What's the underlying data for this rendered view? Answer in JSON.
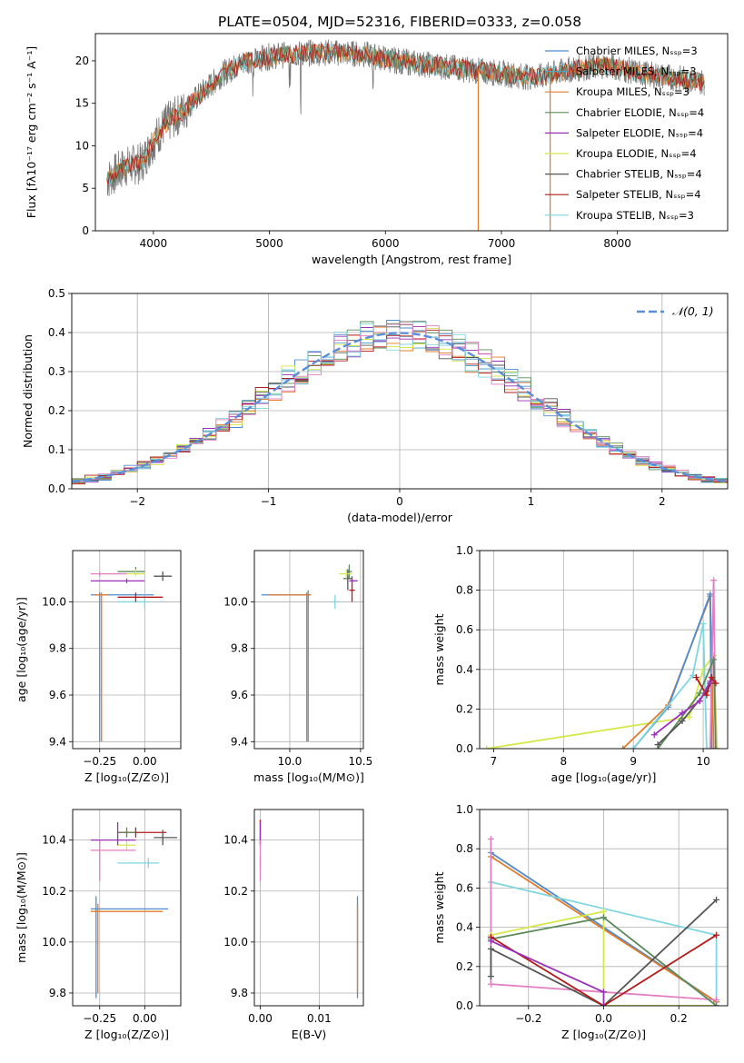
{
  "title": "PLATE=0504, MJD=52316, FIBERID=0333, z=0.058",
  "colors": {
    "chabrier_miles": "#4f8ccf",
    "salpeter_miles": "#4aa5c9",
    "kroupa_miles": "#e07b2b",
    "chabrier_elodie": "#5a8a5a",
    "salpeter_elodie": "#9b30b8",
    "kroupa_elodie": "#d5e84a",
    "chabrier_stelib": "#555555",
    "salpeter_stelib": "#b31b1b",
    "kroupa_stelib": "#7fd6de",
    "gauss": "#5b8ed6",
    "pink": "#e37fc0",
    "grid": "#b0b0b0"
  },
  "chart_data": [
    {
      "id": "spectrum",
      "type": "line",
      "xlabel": "wavelength [Angstrom, rest frame]",
      "ylabel": "Flux [fλ10⁻¹⁷ erg cm⁻² s⁻¹ A⁻¹]",
      "xlim": [
        3500,
        8950
      ],
      "ylim": [
        0,
        23.2
      ],
      "xticks": [
        4000,
        5000,
        6000,
        7000,
        8000
      ],
      "yticks": [
        0,
        5,
        10,
        15,
        20
      ],
      "legend_position": "top-right",
      "legend": [
        {
          "label": "Chabrier MILES, Nₛₛₚ=3",
          "color": "#4f8ccf"
        },
        {
          "label": "Salpeter MILES, Nₛₛₚ=3",
          "color": "#4aa5c9"
        },
        {
          "label": "Kroupa MILES, Nₛₛₚ=3",
          "color": "#e07b2b"
        },
        {
          "label": "Chabrier ELODIE, Nₛₛₚ=4",
          "color": "#5a8a5a"
        },
        {
          "label": "Salpeter ELODIE, Nₛₛₚ=4",
          "color": "#9b30b8"
        },
        {
          "label": "Kroupa ELODIE, Nₛₛₚ=4",
          "color": "#d5e84a"
        },
        {
          "label": "Chabrier STELIB, Nₛₛₚ=4",
          "color": "#555555"
        },
        {
          "label": "Salpeter STELIB, Nₛₛₚ=4",
          "color": "#b31b1b"
        },
        {
          "label": "Kroupa STELIB, Nₛₛₚ=3",
          "color": "#7fd6de"
        }
      ],
      "continuum": [
        [
          3600,
          6
        ],
        [
          3750,
          7.5
        ],
        [
          3900,
          8
        ],
        [
          4000,
          10.5
        ],
        [
          4100,
          12.5
        ],
        [
          4250,
          14
        ],
        [
          4400,
          16
        ],
        [
          4600,
          18.5
        ],
        [
          4800,
          20
        ],
        [
          5000,
          20.5
        ],
        [
          5200,
          20.8
        ],
        [
          5500,
          21
        ],
        [
          5800,
          20.8
        ],
        [
          6100,
          20
        ],
        [
          6400,
          19.5
        ],
        [
          6700,
          19
        ],
        [
          7000,
          18.5
        ],
        [
          7300,
          18
        ],
        [
          7600,
          19
        ],
        [
          7900,
          19.5
        ],
        [
          8200,
          18.5
        ],
        [
          8500,
          18
        ],
        [
          8750,
          17.5
        ]
      ]
    },
    {
      "id": "residuals",
      "type": "histogram",
      "xlabel": "(data-model)/error",
      "ylabel": "Normed distribution",
      "xlim": [
        -2.5,
        2.5
      ],
      "ylim": [
        0,
        0.5
      ],
      "xticks": [
        -2,
        -1,
        0,
        1,
        2
      ],
      "yticks": [
        0.0,
        0.1,
        0.2,
        0.3,
        0.4,
        0.5
      ],
      "legend_position": "top-right",
      "gauss_label": "𝒩(0, 1)"
    },
    {
      "id": "age_vs_Z",
      "type": "scatter",
      "xlabel": "Z [log₁₀(Z/Z⊙)]",
      "ylabel": "age  [log₁₀(age/yr)]",
      "xlim": [
        -0.4,
        0.2
      ],
      "ylim": [
        9.37,
        10.22
      ],
      "xticks": [
        -0.25,
        0.0
      ],
      "yticks": [
        9.4,
        9.6,
        9.8,
        10.0
      ],
      "points": [
        {
          "color": "#4f8ccf",
          "x": -0.25,
          "y": 10.03,
          "xmin": -0.3,
          "xmax": 0.05,
          "ymin": 9.4,
          "ymax": 10.04
        },
        {
          "color": "#e07b2b",
          "x": -0.24,
          "y": 10.03,
          "xmin": -0.28,
          "xmax": -0.2,
          "ymin": 9.4,
          "ymax": 10.04
        },
        {
          "color": "#7fd6de",
          "x": 0.0,
          "y": 10.0,
          "xmin": -0.15,
          "xmax": 0.02,
          "ymin": 9.97,
          "ymax": 10.03
        },
        {
          "color": "#b31b1b",
          "x": -0.05,
          "y": 10.02,
          "xmin": -0.15,
          "xmax": 0.1,
          "ymin": 10.0,
          "ymax": 10.04
        },
        {
          "color": "#555555",
          "x": 0.1,
          "y": 10.11,
          "xmin": 0.05,
          "xmax": 0.15,
          "ymin": 10.09,
          "ymax": 10.13
        },
        {
          "color": "#5a8a5a",
          "x": -0.05,
          "y": 10.13,
          "xmin": -0.15,
          "xmax": 0.0,
          "ymin": 10.12,
          "ymax": 10.15
        },
        {
          "color": "#d5e84a",
          "x": -0.05,
          "y": 10.12,
          "xmin": -0.1,
          "xmax": 0.0,
          "ymin": 10.11,
          "ymax": 10.14
        },
        {
          "color": "#e37fc0",
          "x": -0.25,
          "y": 10.12,
          "xmin": -0.3,
          "xmax": -0.1,
          "ymin": 10.11,
          "ymax": 10.13
        },
        {
          "color": "#9b30b8",
          "x": -0.1,
          "y": 10.09,
          "xmin": -0.3,
          "xmax": 0.0,
          "ymin": 10.08,
          "ymax": 10.1
        }
      ]
    },
    {
      "id": "age_vs_mass",
      "type": "scatter",
      "xlabel": "mass [log₁₀(M/M⊙)]",
      "ylabel": "",
      "xlim": [
        9.75,
        10.52
      ],
      "ylim": [
        9.37,
        10.22
      ],
      "xticks": [
        10.0,
        10.5
      ],
      "yticks": [
        9.4,
        9.6,
        9.8,
        10.0
      ],
      "points": [
        {
          "color": "#4f8ccf",
          "x": 10.13,
          "y": 10.03,
          "xmin": 9.8,
          "xmax": 10.15,
          "ymin": 9.4,
          "ymax": 10.05
        },
        {
          "color": "#e07b2b",
          "x": 10.12,
          "y": 10.03,
          "xmin": 9.85,
          "xmax": 10.15,
          "ymin": 9.4,
          "ymax": 10.04
        },
        {
          "color": "#7fd6de",
          "x": 10.32,
          "y": 10.0,
          "xmin": 10.3,
          "xmax": 10.35,
          "ymin": 9.97,
          "ymax": 10.03
        },
        {
          "color": "#b31b1b",
          "x": 10.44,
          "y": 10.05,
          "xmin": 10.42,
          "xmax": 10.46,
          "ymin": 10.0,
          "ymax": 10.1
        },
        {
          "color": "#555555",
          "x": 10.41,
          "y": 10.1,
          "xmin": 10.38,
          "xmax": 10.44,
          "ymin": 10.05,
          "ymax": 10.14
        },
        {
          "color": "#5a8a5a",
          "x": 10.42,
          "y": 10.13,
          "xmin": 10.4,
          "xmax": 10.44,
          "ymin": 10.1,
          "ymax": 10.16
        },
        {
          "color": "#d5e84a",
          "x": 10.4,
          "y": 10.12,
          "xmin": 10.35,
          "xmax": 10.44,
          "ymin": 10.1,
          "ymax": 10.14
        },
        {
          "color": "#9b30b8",
          "x": 10.44,
          "y": 10.09,
          "xmin": 10.42,
          "xmax": 10.48,
          "ymin": 10.07,
          "ymax": 10.11
        }
      ]
    },
    {
      "id": "weight_vs_age",
      "type": "line",
      "xlabel": "age  [log₁₀(age/yr)]",
      "ylabel": "mass weight",
      "xlim": [
        6.8,
        10.35
      ],
      "ylim": [
        0,
        1.0
      ],
      "xticks": [
        7,
        8,
        9,
        10
      ],
      "yticks": [
        0.0,
        0.2,
        0.4,
        0.6,
        0.8,
        1.0
      ],
      "series": [
        {
          "color": "#d5e84a",
          "x": [
            6.9,
            9.8,
            10.0,
            10.15,
            10.2
          ],
          "y": [
            0.0,
            0.16,
            0.4,
            0.47,
            0.0
          ]
        },
        {
          "color": "#e07b2b",
          "x": [
            8.85,
            9.5,
            10.1,
            10.15
          ],
          "y": [
            0.0,
            0.22,
            0.77,
            0.0
          ]
        },
        {
          "color": "#4f8ccf",
          "x": [
            9.0,
            9.5,
            10.1,
            10.12
          ],
          "y": [
            0.0,
            0.21,
            0.78,
            0.0
          ]
        },
        {
          "color": "#7fd6de",
          "x": [
            9.0,
            9.85,
            10.0,
            10.05
          ],
          "y": [
            0.0,
            0.37,
            0.63,
            0.0
          ]
        },
        {
          "color": "#e37fc0",
          "x": [
            10.1,
            10.15,
            10.18
          ],
          "y": [
            0.0,
            0.85,
            0.0
          ]
        },
        {
          "color": "#5a8a5a",
          "x": [
            9.35,
            9.95,
            10.15,
            10.18
          ],
          "y": [
            0.0,
            0.28,
            0.45,
            0.0
          ]
        },
        {
          "color": "#555555",
          "x": [
            9.35,
            9.7,
            10.05,
            10.1
          ],
          "y": [
            0.02,
            0.14,
            0.29,
            0.33
          ]
        },
        {
          "color": "#b31b1b",
          "x": [
            9.9,
            10.05,
            10.12,
            10.18
          ],
          "y": [
            0.36,
            0.27,
            0.36,
            0.33
          ]
        },
        {
          "color": "#9b30b8",
          "x": [
            9.3,
            9.7,
            9.95,
            10.1
          ],
          "y": [
            0.07,
            0.18,
            0.24,
            0.34
          ]
        }
      ]
    },
    {
      "id": "mass_vs_Z",
      "type": "scatter",
      "xlabel": "Z [log₁₀(Z/Z⊙)]",
      "ylabel": "mass [log₁₀(M/M⊙)]",
      "xlim": [
        -0.4,
        0.2
      ],
      "ylim": [
        9.75,
        10.52
      ],
      "xticks": [
        -0.25,
        0.0
      ],
      "yticks": [
        9.8,
        10.0,
        10.2,
        10.4
      ],
      "points": [
        {
          "color": "#4f8ccf",
          "x": -0.27,
          "y": 10.13,
          "xmin": -0.3,
          "xmax": 0.13,
          "ymin": 9.78,
          "ymax": 10.18
        },
        {
          "color": "#e07b2b",
          "x": -0.26,
          "y": 10.12,
          "xmin": -0.3,
          "xmax": 0.1,
          "ymin": 9.8,
          "ymax": 10.15
        },
        {
          "color": "#7fd6de",
          "x": 0.02,
          "y": 10.31,
          "xmin": -0.15,
          "xmax": 0.08,
          "ymin": 10.29,
          "ymax": 10.33
        },
        {
          "color": "#b31b1b",
          "x": -0.05,
          "y": 10.43,
          "xmin": -0.15,
          "xmax": 0.12,
          "ymin": 10.41,
          "ymax": 10.45
        },
        {
          "color": "#555555",
          "x": 0.1,
          "y": 10.41,
          "xmin": 0.05,
          "xmax": 0.18,
          "ymin": 10.38,
          "ymax": 10.44
        },
        {
          "color": "#5a8a5a",
          "x": -0.1,
          "y": 10.43,
          "xmin": -0.15,
          "xmax": -0.05,
          "ymin": 10.41,
          "ymax": 10.45
        },
        {
          "color": "#d5e84a",
          "x": -0.1,
          "y": 10.38,
          "xmin": -0.15,
          "xmax": -0.05,
          "ymin": 10.36,
          "ymax": 10.4
        },
        {
          "color": "#e37fc0",
          "x": -0.25,
          "y": 10.36,
          "xmin": -0.3,
          "xmax": -0.05,
          "ymin": 10.24,
          "ymax": 10.4
        },
        {
          "color": "#9b30b8",
          "x": -0.15,
          "y": 10.4,
          "xmin": -0.3,
          "xmax": -0.05,
          "ymin": 10.38,
          "ymax": 10.47
        }
      ]
    },
    {
      "id": "mass_vs_EBV",
      "type": "scatter",
      "xlabel": "E(B-V)",
      "ylabel": "",
      "xlim": [
        -0.001,
        0.0175
      ],
      "ylim": [
        9.75,
        10.52
      ],
      "xticks": [
        0.0,
        0.01
      ],
      "yticks": [
        9.8,
        10.0,
        10.2,
        10.4
      ],
      "points": [
        {
          "color": "#4f8ccf",
          "x": 0.0165,
          "y": 9.95,
          "xmin": 0.0165,
          "xmax": 0.0165,
          "ymin": 9.78,
          "ymax": 10.18
        },
        {
          "color": "#e07b2b",
          "x": 0.0165,
          "y": 9.95,
          "xmin": 0.0165,
          "xmax": 0.0165,
          "ymin": 9.8,
          "ymax": 10.15
        },
        {
          "color": "#b31b1b",
          "x": 0.0,
          "y": 10.43,
          "xmin": 0.0,
          "xmax": 0.0,
          "ymin": 10.38,
          "ymax": 10.48
        },
        {
          "color": "#9b30b8",
          "x": 0.0,
          "y": 10.42,
          "xmin": 0.0,
          "xmax": 0.0,
          "ymin": 10.38,
          "ymax": 10.47
        },
        {
          "color": "#7fd6de",
          "x": 0.0,
          "y": 10.31,
          "xmin": 0.0,
          "xmax": 0.0,
          "ymin": 10.29,
          "ymax": 10.34
        },
        {
          "color": "#e37fc0",
          "x": 0.0,
          "y": 10.33,
          "xmin": 0.0,
          "xmax": 0.0,
          "ymin": 10.24,
          "ymax": 10.4
        }
      ]
    },
    {
      "id": "weight_vs_Z",
      "type": "line",
      "xlabel": "Z [log₁₀(Z/Z⊙)]",
      "ylabel": "mass weight",
      "xlim": [
        -0.33,
        0.33
      ],
      "ylim": [
        0,
        1.0
      ],
      "xticks": [
        -0.2,
        0.0,
        0.2
      ],
      "yticks": [
        0.0,
        0.2,
        0.4,
        0.6,
        0.8,
        1.0
      ],
      "series": [
        {
          "color": "#4f8ccf",
          "x": [
            -0.3,
            0.3,
            0.3
          ],
          "y": [
            0.78,
            0.02,
            0.0
          ]
        },
        {
          "color": "#e07b2b",
          "x": [
            -0.3,
            0.3
          ],
          "y": [
            0.76,
            0.02
          ]
        },
        {
          "color": "#7fd6de",
          "x": [
            -0.3,
            0.3,
            0.3
          ],
          "y": [
            0.63,
            0.36,
            0.0
          ]
        },
        {
          "color": "#e37fc0",
          "x": [
            -0.3,
            -0.3,
            0.3
          ],
          "y": [
            0.85,
            0.11,
            0.03
          ]
        },
        {
          "color": "#d5e84a",
          "x": [
            -0.3,
            0.0,
            0.0,
            0.3
          ],
          "y": [
            0.36,
            0.48,
            0.0,
            0.0
          ]
        },
        {
          "color": "#5a8a5a",
          "x": [
            -0.3,
            0.0,
            0.3
          ],
          "y": [
            0.34,
            0.45,
            0.0
          ]
        },
        {
          "color": "#555555",
          "x": [
            -0.3,
            -0.3,
            0.0,
            0.3
          ],
          "y": [
            0.15,
            0.29,
            0.0,
            0.54
          ]
        },
        {
          "color": "#b31b1b",
          "x": [
            -0.3,
            0.0,
            0.3
          ],
          "y": [
            0.35,
            0.0,
            0.36
          ]
        },
        {
          "color": "#9b30b8",
          "x": [
            -0.3,
            0.0,
            0.0
          ],
          "y": [
            0.33,
            0.07,
            0.0
          ]
        }
      ]
    }
  ]
}
